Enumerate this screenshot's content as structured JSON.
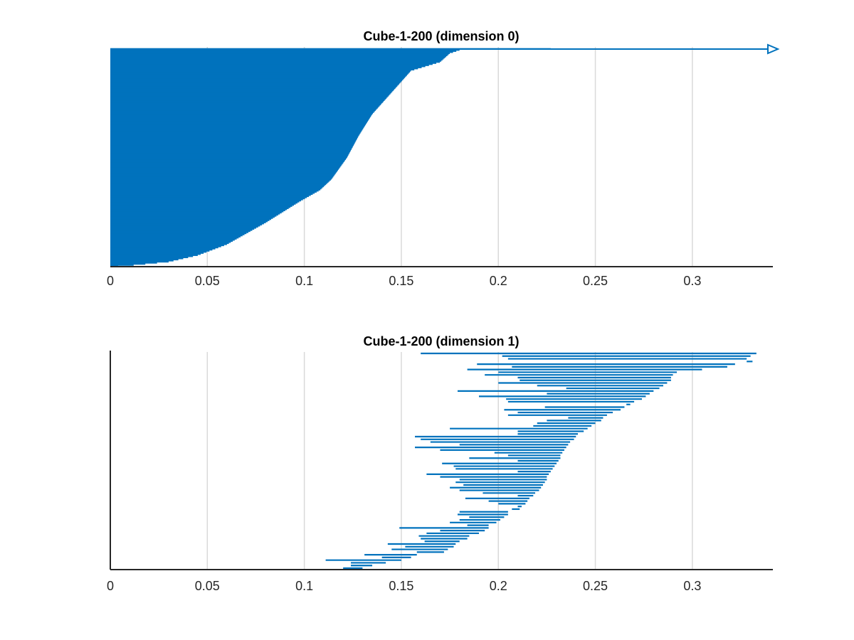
{
  "chart_data": [
    {
      "type": "barcode",
      "title": "Cube-1-200 (dimension 0)",
      "xlabel": "",
      "ylabel": "",
      "xlim": [
        0,
        0.3415
      ],
      "x_ticks": [
        "0",
        "0.05",
        "0.1",
        "0.15",
        "0.2",
        "0.25",
        "0.3"
      ],
      "grid": "vertical",
      "color": "#0072bd",
      "n_bars": 200,
      "bar_births": "all 0",
      "infinite_bars": 1,
      "death_profile": [
        [
          0,
          0.227
        ],
        [
          0.002,
          0.19
        ],
        [
          0.005,
          0.18
        ],
        [
          0.02,
          0.175
        ],
        [
          0.06,
          0.17
        ],
        [
          0.1,
          0.155
        ],
        [
          0.2,
          0.145
        ],
        [
          0.3,
          0.135
        ],
        [
          0.4,
          0.128
        ],
        [
          0.5,
          0.122
        ],
        [
          0.6,
          0.114
        ],
        [
          0.65,
          0.108
        ],
        [
          0.7,
          0.098
        ],
        [
          0.8,
          0.08
        ],
        [
          0.9,
          0.06
        ],
        [
          0.95,
          0.045
        ],
        [
          0.98,
          0.03
        ],
        [
          0.995,
          0.012
        ],
        [
          1,
          0.004
        ]
      ]
    },
    {
      "type": "barcode",
      "title": "Cube-1-200 (dimension 1)",
      "xlabel": "",
      "ylabel": "",
      "xlim": [
        0,
        0.3415
      ],
      "x_ticks": [
        "0",
        "0.05",
        "0.1",
        "0.15",
        "0.2",
        "0.25",
        "0.3"
      ],
      "grid": "vertical",
      "color": "#0072bd",
      "bars": [
        [
          0.16,
          0.333
        ],
        [
          0.202,
          0.33
        ],
        [
          0.205,
          0.328
        ],
        [
          0.328,
          0.331
        ],
        [
          0.189,
          0.322
        ],
        [
          0.207,
          0.318
        ],
        [
          0.184,
          0.305
        ],
        [
          0.2,
          0.292
        ],
        [
          0.193,
          0.29
        ],
        [
          0.21,
          0.289
        ],
        [
          0.211,
          0.289
        ],
        [
          0.2,
          0.287
        ],
        [
          0.22,
          0.285
        ],
        [
          0.235,
          0.283
        ],
        [
          0.179,
          0.28
        ],
        [
          0.225,
          0.278
        ],
        [
          0.19,
          0.276
        ],
        [
          0.204,
          0.274
        ],
        [
          0.205,
          0.27
        ],
        [
          0.266,
          0.268
        ],
        [
          0.224,
          0.265
        ],
        [
          0.203,
          0.263
        ],
        [
          0.21,
          0.259
        ],
        [
          0.205,
          0.256
        ],
        [
          0.236,
          0.254
        ],
        [
          0.225,
          0.253
        ],
        [
          0.22,
          0.25
        ],
        [
          0.218,
          0.248
        ],
        [
          0.175,
          0.246
        ],
        [
          0.21,
          0.244
        ],
        [
          0.21,
          0.241
        ],
        [
          0.157,
          0.24
        ],
        [
          0.16,
          0.239
        ],
        [
          0.165,
          0.237
        ],
        [
          0.18,
          0.236
        ],
        [
          0.157,
          0.235
        ],
        [
          0.17,
          0.234
        ],
        [
          0.198,
          0.233
        ],
        [
          0.205,
          0.232
        ],
        [
          0.185,
          0.232
        ],
        [
          0.21,
          0.231
        ],
        [
          0.171,
          0.23
        ],
        [
          0.177,
          0.229
        ],
        [
          0.178,
          0.228
        ],
        [
          0.21,
          0.227
        ],
        [
          0.163,
          0.226
        ],
        [
          0.17,
          0.225
        ],
        [
          0.18,
          0.225
        ],
        [
          0.178,
          0.224
        ],
        [
          0.182,
          0.223
        ],
        [
          0.175,
          0.222
        ],
        [
          0.18,
          0.221
        ],
        [
          0.192,
          0.219
        ],
        [
          0.21,
          0.218
        ],
        [
          0.183,
          0.216
        ],
        [
          0.195,
          0.215
        ],
        [
          0.2,
          0.214
        ],
        [
          0.21,
          0.212
        ],
        [
          0.207,
          0.211
        ],
        [
          0.18,
          0.205
        ],
        [
          0.179,
          0.205
        ],
        [
          0.185,
          0.203
        ],
        [
          0.18,
          0.201
        ],
        [
          0.175,
          0.199
        ],
        [
          0.184,
          0.195
        ],
        [
          0.149,
          0.195
        ],
        [
          0.17,
          0.193
        ],
        [
          0.163,
          0.19
        ],
        [
          0.159,
          0.185
        ],
        [
          0.16,
          0.184
        ],
        [
          0.162,
          0.18
        ],
        [
          0.143,
          0.178
        ],
        [
          0.152,
          0.177
        ],
        [
          0.145,
          0.174
        ],
        [
          0.158,
          0.172
        ],
        [
          0.131,
          0.158
        ],
        [
          0.14,
          0.155
        ],
        [
          0.111,
          0.15
        ],
        [
          0.124,
          0.142
        ],
        [
          0.124,
          0.135
        ],
        [
          0.12,
          0.13
        ]
      ]
    }
  ]
}
